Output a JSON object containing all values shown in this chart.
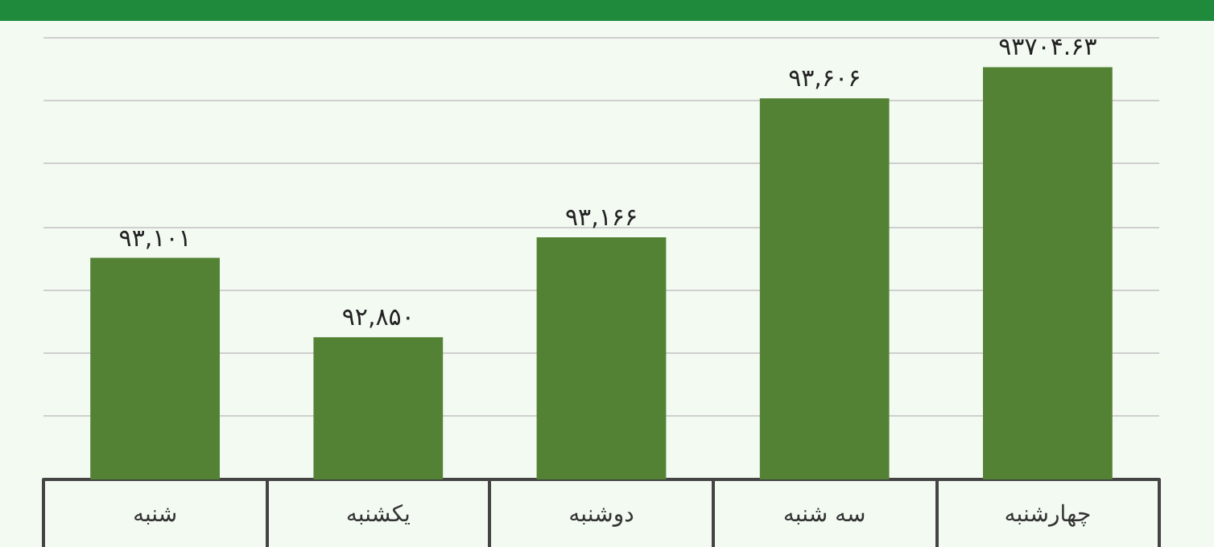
{
  "chart_data": {
    "type": "bar",
    "categories": [
      "شنبه",
      "یکشنبه",
      "دوشنبه",
      "سه شنبه",
      "چهارشنبه"
    ],
    "values": [
      93101,
      92850,
      93166,
      93606,
      93704.63
    ],
    "value_labels": [
      "۹۳,۱۰۱",
      "۹۲,۸۵۰",
      "۹۳,۱۶۶",
      "۹۳,۶۰۶",
      "۹۳۷۰۴.۶۳"
    ],
    "color": "#548235",
    "ylim": [
      92400,
      93800
    ],
    "yticks": [
      {
        "value": 92400,
        "label": null
      },
      {
        "value": 92600,
        "label": null
      },
      {
        "value": 92800,
        "label": null
      },
      {
        "value": 93000,
        "label": null
      },
      {
        "value": 93200,
        "label": null
      },
      {
        "value": 93400,
        "label": null
      },
      {
        "value": 93600,
        "label": null
      },
      {
        "value": 93800,
        "label": null
      }
    ],
    "grid": "y",
    "tick_labels": "x"
  }
}
